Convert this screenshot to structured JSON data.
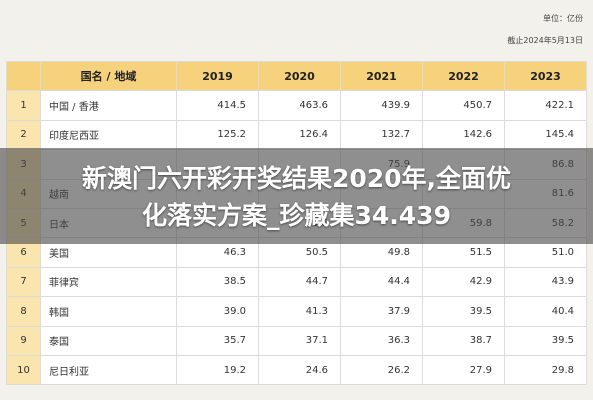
{
  "unit_label": "单位：亿份",
  "date_label": "截止2024年5月13日",
  "headers": [
    "国名 / 地域",
    "2019",
    "2020",
    "2021",
    "2022",
    "2023"
  ],
  "rows": [
    {
      "idx": "1",
      "name": "中国 / 香港",
      "values": [
        "414.5",
        "463.6",
        "439.9",
        "450.7",
        "422.1"
      ]
    },
    {
      "idx": "2",
      "name": "印度尼西亚",
      "values": [
        "125.2",
        "126.4",
        "132.7",
        "142.6",
        "145.4"
      ]
    },
    {
      "idx": "3",
      "name": "",
      "values": [
        "",
        "",
        "75.9",
        "",
        "86.8"
      ]
    },
    {
      "idx": "4",
      "name": "越南",
      "values": [
        "",
        "",
        "",
        "",
        "81.6"
      ]
    },
    {
      "idx": "5",
      "name": "日本",
      "values": [
        "",
        "85.6",
        "",
        "59.8",
        "58.2"
      ]
    },
    {
      "idx": "6",
      "name": "美国",
      "values": [
        "46.3",
        "50.5",
        "49.8",
        "51.5",
        "51.0"
      ]
    },
    {
      "idx": "7",
      "name": "菲律宾",
      "values": [
        "38.5",
        "44.7",
        "44.4",
        "42.9",
        "43.9"
      ]
    },
    {
      "idx": "8",
      "name": "韩国",
      "values": [
        "39.0",
        "41.3",
        "37.9",
        "39.5",
        "40.4"
      ]
    },
    {
      "idx": "9",
      "name": "泰国",
      "values": [
        "35.7",
        "37.1",
        "36.3",
        "38.7",
        "39.5"
      ]
    },
    {
      "idx": "10",
      "name": "尼日利亚",
      "values": [
        "19.2",
        "24.6",
        "26.2",
        "27.9",
        "29.8"
      ]
    }
  ],
  "headline_line1": "新澳门六开彩开奖结果2020年,全面优",
  "headline_line2": "化落实方案_珍藏集34.439"
}
